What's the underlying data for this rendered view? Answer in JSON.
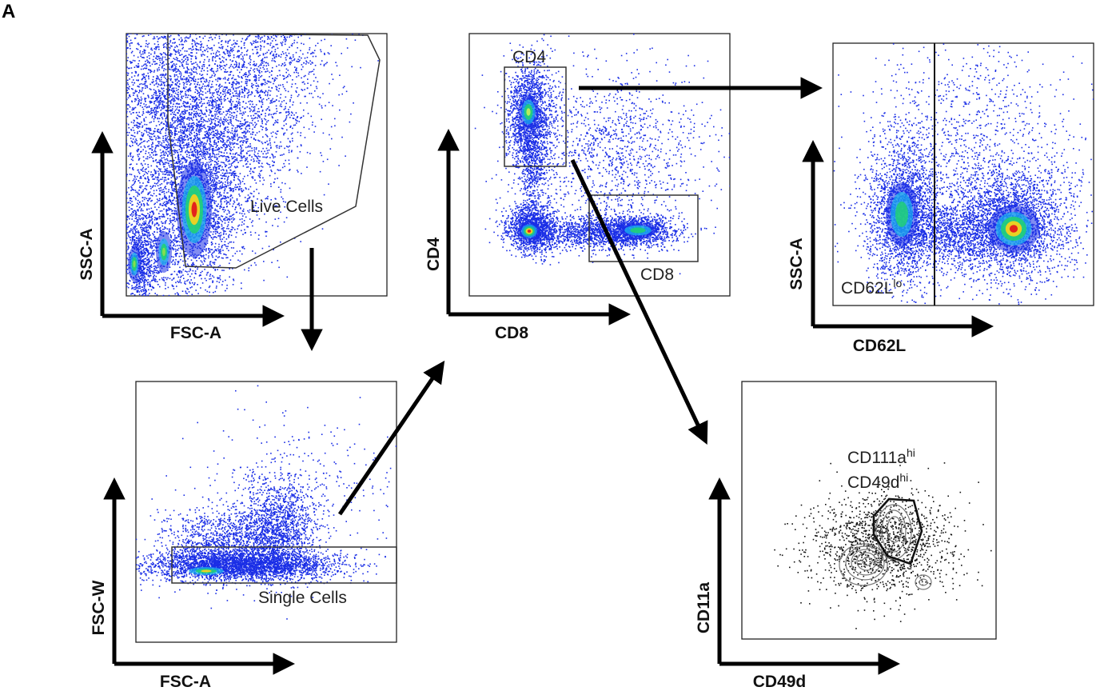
{
  "panel_letter": "A",
  "panels": {
    "live": {
      "x_label": "FSC-A",
      "y_label": "SSC-A",
      "gate_label": "Live Cells"
    },
    "single": {
      "x_label": "FSC-A",
      "y_label": "FSC-W",
      "gate_label": "Single Cells"
    },
    "cd4cd8": {
      "x_label": "CD8",
      "y_label": "CD4",
      "gate_cd4_label": "CD4",
      "gate_cd8_label": "CD8"
    },
    "cd62l": {
      "x_label": "CD62L",
      "y_label": "SSC-A",
      "gate_label_base": "CD62L",
      "gate_label_sup": "lo"
    },
    "cd11a": {
      "x_label": "CD49d",
      "y_label": "CD11a",
      "gate_label_line1_base": "CD111a",
      "gate_label_line1_sup": "hi",
      "gate_label_line2_base": "CD49d",
      "gate_label_line2_sup": "hi"
    }
  },
  "colors": {
    "density_low": "#1a2ee6",
    "density_mid": "#22d36e",
    "density_high": "#ffd21a",
    "density_peak": "#e41a1c",
    "contour": "#777777"
  }
}
